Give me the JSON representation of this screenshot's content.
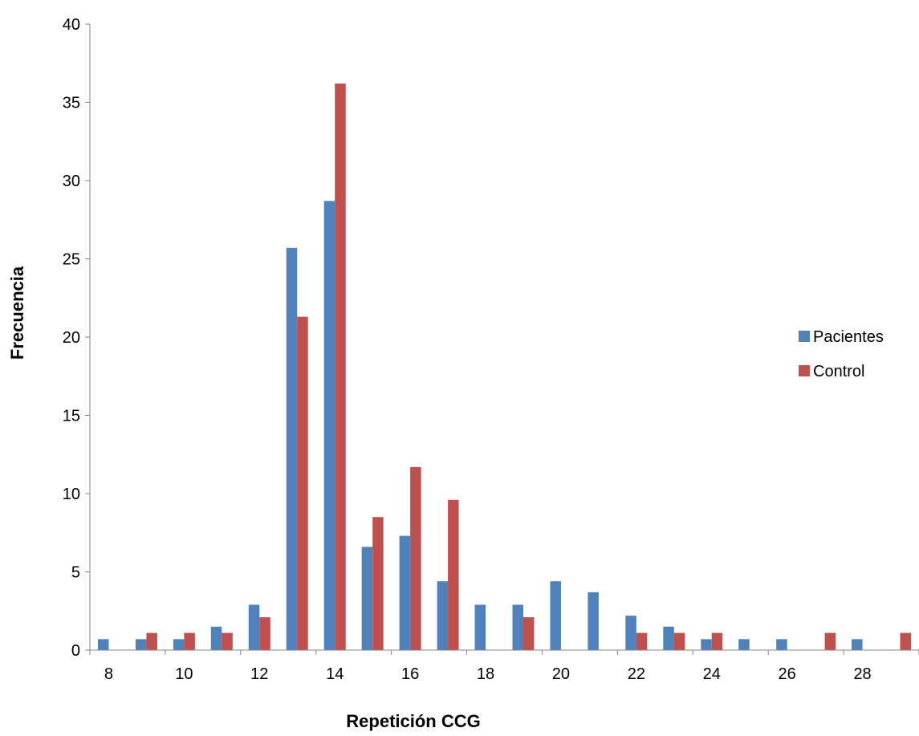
{
  "chart_data": {
    "type": "bar",
    "title": "",
    "xlabel": "Repetición CCG",
    "ylabel": "Frecuencia",
    "categories": [
      8,
      9,
      10,
      11,
      12,
      13,
      14,
      15,
      16,
      17,
      18,
      19,
      20,
      21,
      22,
      23,
      24,
      25,
      26,
      27,
      28,
      29
    ],
    "x_tick_labels": [
      "8",
      "10",
      "12",
      "14",
      "16",
      "18",
      "20",
      "22",
      "24",
      "26",
      "28"
    ],
    "y_tick_labels": [
      "0",
      "5",
      "10",
      "15",
      "20",
      "25",
      "30",
      "35",
      "40"
    ],
    "ylim": [
      0,
      40
    ],
    "grid": false,
    "legend_position": "right",
    "series": [
      {
        "name": "Pacientes",
        "color": "#4F81BD",
        "values": [
          0.7,
          0.7,
          0.7,
          1.5,
          2.9,
          25.7,
          28.7,
          6.6,
          7.3,
          4.4,
          2.9,
          2.9,
          4.4,
          3.7,
          2.2,
          1.5,
          0.7,
          0.7,
          0.7,
          0,
          0.7,
          0
        ]
      },
      {
        "name": "Control",
        "color": "#C0504D",
        "values": [
          0,
          1.1,
          1.1,
          1.1,
          2.1,
          21.3,
          36.2,
          8.5,
          11.7,
          9.6,
          0,
          2.1,
          0,
          0,
          1.1,
          1.1,
          1.1,
          0,
          0,
          1.1,
          0,
          1.1
        ]
      }
    ]
  }
}
